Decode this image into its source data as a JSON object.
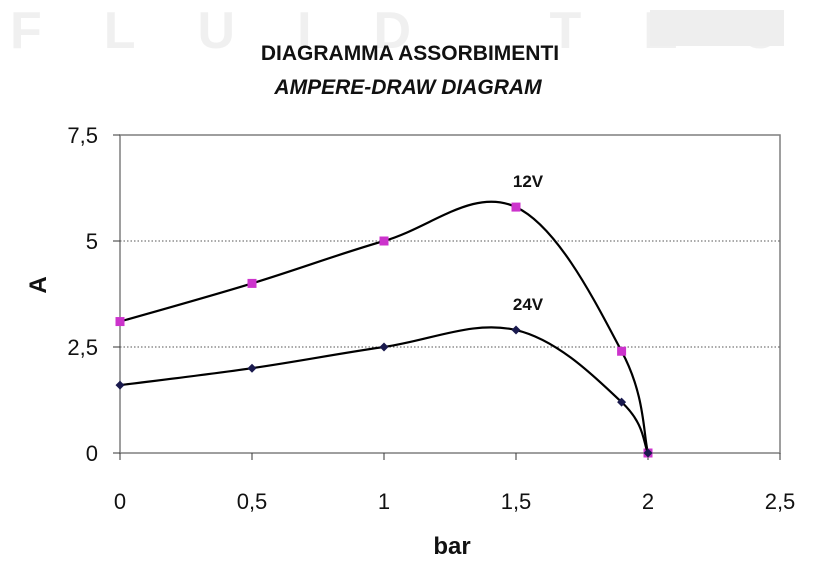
{
  "watermark": {
    "text": "FLUID TECH"
  },
  "chart_data": {
    "type": "line",
    "title": "DIAGRAMMA ASSORBIMENTI",
    "subtitle": "AMPERE-DRAW DIAGRAM",
    "xlabel": "bar",
    "ylabel": "A",
    "xlim": [
      0,
      2.5
    ],
    "ylim": [
      0,
      7.5
    ],
    "x_ticks": [
      "0",
      "0,5",
      "1",
      "1,5",
      "2",
      "2,5"
    ],
    "y_ticks": [
      "0",
      "2,5",
      "5",
      "7,5"
    ],
    "grid": "horizontal dotted at 2,5 and 5",
    "series": [
      {
        "name": "12V",
        "marker": "square",
        "marker_color": "#cc33cc",
        "x": [
          0,
          0.5,
          1,
          1.5,
          1.9,
          2
        ],
        "y": [
          3.1,
          4.0,
          5.0,
          5.8,
          2.4,
          0
        ]
      },
      {
        "name": "24V",
        "marker": "diamond",
        "marker_color": "#1a1a4e",
        "x": [
          0,
          0.5,
          1,
          1.5,
          1.9,
          2
        ],
        "y": [
          1.6,
          2.0,
          2.5,
          2.9,
          1.2,
          0
        ]
      }
    ]
  }
}
